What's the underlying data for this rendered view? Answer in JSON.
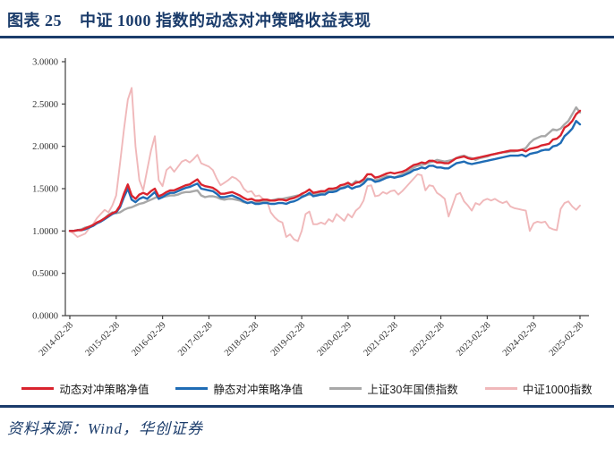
{
  "header": {
    "figure_label": "图表 25",
    "title": "中证 1000 指数的动态对冲策略收益表现"
  },
  "footer": {
    "source": "资料来源：Wind，华创证券"
  },
  "colors": {
    "accent_navy": "#1b3c6b",
    "axis": "#404040",
    "red": "#d9242e",
    "blue": "#1f6cb5",
    "gray": "#a8a8a8",
    "pink": "#f0b8ba"
  },
  "chart_data": {
    "type": "line",
    "title": "",
    "xlabel": "",
    "ylabel": "",
    "ylim": [
      0,
      3
    ],
    "grid": false,
    "legend_position": "bottom",
    "x_frequency": "monthly from 2014-02 to 2025-02",
    "x_tick_labels": [
      "2014-02-28",
      "2015-02-28",
      "2016-02-29",
      "2017-02-28",
      "2018-02-28",
      "2019-02-28",
      "2020-02-29",
      "2021-02-28",
      "2022-02-28",
      "2023-02-28",
      "2024-02-29",
      "2025-02-28"
    ],
    "y_tick_labels": [
      "3.0000",
      "2.5000",
      "2.0000",
      "1.5000",
      "1.0000",
      "0.5000",
      "0.0000"
    ],
    "series": [
      {
        "name": "动态对冲策略净值",
        "color": "#d9242e",
        "width": 2.4,
        "values": [
          1.0,
          1.0,
          1.01,
          1.01,
          1.03,
          1.05,
          1.07,
          1.1,
          1.12,
          1.15,
          1.18,
          1.21,
          1.23,
          1.3,
          1.44,
          1.55,
          1.42,
          1.38,
          1.43,
          1.45,
          1.43,
          1.47,
          1.5,
          1.41,
          1.43,
          1.46,
          1.48,
          1.48,
          1.5,
          1.52,
          1.54,
          1.55,
          1.58,
          1.61,
          1.55,
          1.53,
          1.52,
          1.51,
          1.48,
          1.44,
          1.44,
          1.45,
          1.46,
          1.44,
          1.42,
          1.39,
          1.37,
          1.38,
          1.36,
          1.36,
          1.37,
          1.37,
          1.36,
          1.36,
          1.37,
          1.37,
          1.36,
          1.38,
          1.39,
          1.41,
          1.44,
          1.46,
          1.49,
          1.45,
          1.46,
          1.47,
          1.47,
          1.5,
          1.5,
          1.51,
          1.54,
          1.55,
          1.57,
          1.54,
          1.57,
          1.58,
          1.61,
          1.67,
          1.67,
          1.63,
          1.64,
          1.66,
          1.68,
          1.69,
          1.68,
          1.69,
          1.7,
          1.72,
          1.75,
          1.78,
          1.79,
          1.81,
          1.8,
          1.83,
          1.83,
          1.81,
          1.81,
          1.8,
          1.8,
          1.83,
          1.86,
          1.87,
          1.88,
          1.86,
          1.85,
          1.86,
          1.87,
          1.88,
          1.89,
          1.9,
          1.91,
          1.92,
          1.93,
          1.94,
          1.95,
          1.95,
          1.95,
          1.96,
          1.94,
          1.97,
          1.98,
          1.99,
          2.01,
          2.02,
          2.03,
          2.08,
          2.09,
          2.13,
          2.22,
          2.25,
          2.3,
          2.38,
          2.42
        ]
      },
      {
        "name": "静态对冲策略净值",
        "color": "#1f6cb5",
        "width": 2.4,
        "values": [
          1.0,
          1.0,
          1.01,
          1.01,
          1.02,
          1.04,
          1.06,
          1.09,
          1.11,
          1.14,
          1.17,
          1.2,
          1.22,
          1.28,
          1.4,
          1.5,
          1.37,
          1.34,
          1.38,
          1.4,
          1.38,
          1.42,
          1.46,
          1.38,
          1.4,
          1.43,
          1.45,
          1.45,
          1.47,
          1.49,
          1.51,
          1.52,
          1.54,
          1.56,
          1.5,
          1.49,
          1.48,
          1.47,
          1.44,
          1.4,
          1.4,
          1.41,
          1.42,
          1.4,
          1.38,
          1.35,
          1.33,
          1.34,
          1.32,
          1.32,
          1.33,
          1.33,
          1.32,
          1.32,
          1.33,
          1.33,
          1.32,
          1.34,
          1.35,
          1.37,
          1.4,
          1.42,
          1.45,
          1.41,
          1.42,
          1.43,
          1.43,
          1.46,
          1.46,
          1.47,
          1.5,
          1.51,
          1.53,
          1.5,
          1.52,
          1.53,
          1.56,
          1.61,
          1.61,
          1.58,
          1.59,
          1.61,
          1.63,
          1.64,
          1.63,
          1.64,
          1.65,
          1.67,
          1.69,
          1.72,
          1.73,
          1.75,
          1.74,
          1.77,
          1.77,
          1.75,
          1.75,
          1.74,
          1.74,
          1.77,
          1.8,
          1.81,
          1.82,
          1.8,
          1.79,
          1.8,
          1.81,
          1.82,
          1.83,
          1.84,
          1.85,
          1.86,
          1.87,
          1.88,
          1.89,
          1.89,
          1.89,
          1.9,
          1.88,
          1.91,
          1.92,
          1.93,
          1.95,
          1.96,
          1.96,
          2.0,
          2.01,
          2.04,
          2.12,
          2.16,
          2.21,
          2.3,
          2.26
        ]
      },
      {
        "name": "上证30年国债指数",
        "color": "#a8a8a8",
        "width": 2.4,
        "values": [
          1.0,
          1.0,
          1.01,
          1.02,
          1.04,
          1.05,
          1.07,
          1.09,
          1.12,
          1.15,
          1.19,
          1.22,
          1.21,
          1.22,
          1.25,
          1.27,
          1.28,
          1.3,
          1.32,
          1.33,
          1.35,
          1.37,
          1.39,
          1.41,
          1.4,
          1.41,
          1.42,
          1.42,
          1.43,
          1.45,
          1.46,
          1.46,
          1.47,
          1.48,
          1.42,
          1.4,
          1.41,
          1.41,
          1.4,
          1.38,
          1.37,
          1.38,
          1.38,
          1.37,
          1.36,
          1.34,
          1.33,
          1.34,
          1.33,
          1.34,
          1.35,
          1.35,
          1.36,
          1.37,
          1.38,
          1.38,
          1.39,
          1.4,
          1.41,
          1.42,
          1.42,
          1.42,
          1.43,
          1.43,
          1.44,
          1.45,
          1.46,
          1.47,
          1.48,
          1.49,
          1.51,
          1.52,
          1.54,
          1.55,
          1.59,
          1.57,
          1.59,
          1.62,
          1.61,
          1.6,
          1.61,
          1.63,
          1.65,
          1.64,
          1.63,
          1.65,
          1.67,
          1.69,
          1.72,
          1.75,
          1.77,
          1.78,
          1.79,
          1.81,
          1.82,
          1.84,
          1.83,
          1.82,
          1.83,
          1.84,
          1.86,
          1.88,
          1.89,
          1.87,
          1.86,
          1.84,
          1.86,
          1.87,
          1.88,
          1.9,
          1.91,
          1.92,
          1.93,
          1.93,
          1.94,
          1.94,
          1.95,
          1.96,
          1.98,
          2.04,
          2.08,
          2.1,
          2.12,
          2.12,
          2.16,
          2.2,
          2.19,
          2.21,
          2.26,
          2.3,
          2.38,
          2.46,
          2.4
        ]
      },
      {
        "name": "中证1000指数",
        "color": "#f0b8ba",
        "width": 1.9,
        "values": [
          1.0,
          0.97,
          0.93,
          0.95,
          0.97,
          1.03,
          1.08,
          1.15,
          1.2,
          1.25,
          1.22,
          1.3,
          1.42,
          1.8,
          2.2,
          2.55,
          2.69,
          2.0,
          1.6,
          1.48,
          1.72,
          1.95,
          2.12,
          1.6,
          1.53,
          1.72,
          1.76,
          1.7,
          1.76,
          1.82,
          1.84,
          1.81,
          1.85,
          1.9,
          1.8,
          1.78,
          1.76,
          1.72,
          1.62,
          1.54,
          1.57,
          1.6,
          1.64,
          1.62,
          1.58,
          1.5,
          1.46,
          1.47,
          1.41,
          1.42,
          1.38,
          1.36,
          1.22,
          1.16,
          1.12,
          1.1,
          0.93,
          0.96,
          0.9,
          0.88,
          1.0,
          1.2,
          1.23,
          1.08,
          1.08,
          1.1,
          1.08,
          1.14,
          1.11,
          1.2,
          1.16,
          1.12,
          1.2,
          1.16,
          1.24,
          1.28,
          1.36,
          1.53,
          1.54,
          1.41,
          1.42,
          1.46,
          1.44,
          1.47,
          1.48,
          1.43,
          1.47,
          1.52,
          1.57,
          1.62,
          1.67,
          1.66,
          1.48,
          1.54,
          1.53,
          1.45,
          1.42,
          1.38,
          1.17,
          1.3,
          1.43,
          1.45,
          1.35,
          1.3,
          1.24,
          1.33,
          1.31,
          1.36,
          1.38,
          1.36,
          1.38,
          1.35,
          1.33,
          1.35,
          1.29,
          1.27,
          1.26,
          1.25,
          1.24,
          1.0,
          1.09,
          1.11,
          1.1,
          1.11,
          1.04,
          1.02,
          1.01,
          1.26,
          1.33,
          1.35,
          1.29,
          1.25,
          1.3
        ]
      }
    ]
  }
}
